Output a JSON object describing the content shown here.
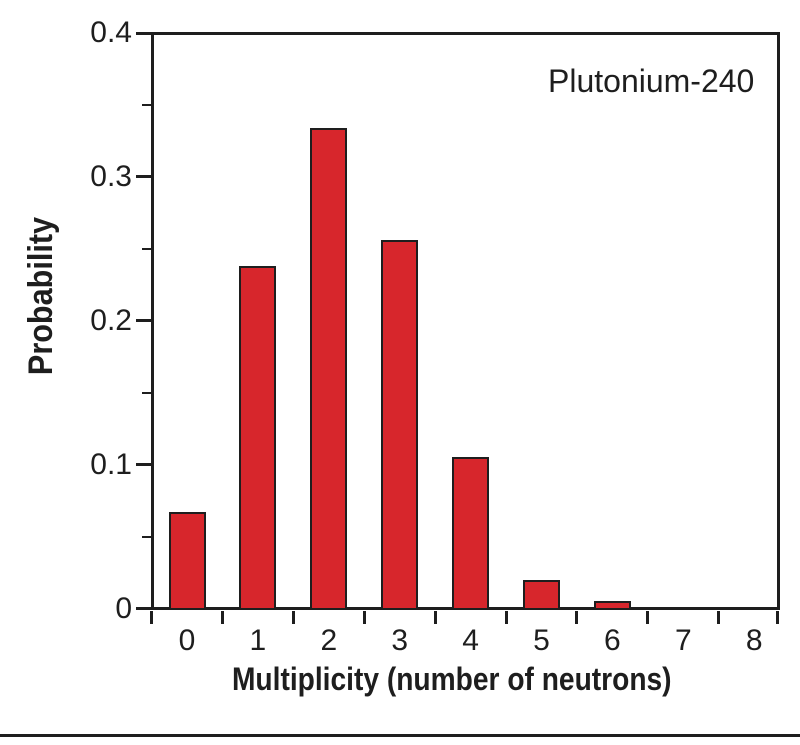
{
  "chart_data": {
    "type": "bar",
    "title": "",
    "annotation": "Plutonium-240",
    "xlabel": "Multiplicity (number of neutrons)",
    "ylabel": "Probability",
    "categories": [
      "0",
      "1",
      "2",
      "3",
      "4",
      "5",
      "6",
      "7",
      "8"
    ],
    "values": [
      0.067,
      0.238,
      0.334,
      0.256,
      0.105,
      0.02,
      0.005,
      0.0,
      0.0
    ],
    "ylim": [
      0,
      0.4
    ],
    "y_ticks": [
      0,
      0.1,
      0.2,
      0.3,
      0.4
    ],
    "y_tick_labels": [
      "0",
      "0.1",
      "0.2",
      "0.3",
      "0.4"
    ],
    "y_minor_ticks": [
      0.05,
      0.15,
      0.25,
      0.35
    ],
    "grid": false,
    "legend": "none",
    "bar_color": "#d7262c",
    "bar_border_color": "#1e1e1e",
    "axis_color": "#1e1e1e",
    "background_color": "#ffffff"
  }
}
